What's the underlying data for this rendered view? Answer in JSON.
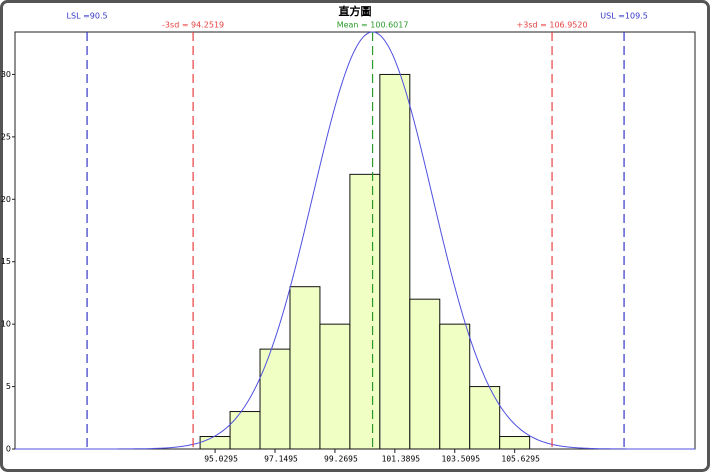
{
  "chart_data": {
    "type": "histogram",
    "title": "直方圖",
    "bins": [
      94.4995,
      95.5595,
      96.6195,
      97.6795,
      98.7395,
      99.7995,
      100.8595,
      101.9195,
      102.9795,
      104.0395,
      105.0995,
      106.1595
    ],
    "values": [
      1,
      3,
      8,
      13,
      10,
      22,
      30,
      12,
      10,
      5,
      1
    ],
    "color": "#f0ffc4",
    "xlim": [
      87.95,
      112.01
    ],
    "xticks": [
      95.0295,
      97.1495,
      99.2695,
      101.3895,
      103.5095,
      105.6295
    ],
    "ylim": [
      0,
      33.4
    ],
    "yticks": [
      0,
      5,
      10,
      15,
      20,
      25,
      30
    ],
    "lines": [
      {
        "label": "LSL =90.5",
        "value": 90.5,
        "color": "#3434c8"
      },
      {
        "label": "-3sd = 94.2519",
        "value": 94.2519,
        "color": "#e84040"
      },
      {
        "label": "Mean = 100.6017",
        "value": 100.6017,
        "color": "#2a9a2a"
      },
      {
        "label": "+3sd = 106.9520",
        "value": 106.952,
        "color": "#e84040"
      },
      {
        "label": "USL =109.5",
        "value": 109.5,
        "color": "#3434c8"
      }
    ],
    "curve_color": "#5050e0"
  }
}
